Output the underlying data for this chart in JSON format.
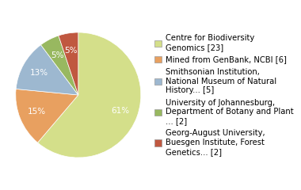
{
  "sizes": [
    60,
    15,
    13,
    5,
    5
  ],
  "colors": [
    "#d4df8a",
    "#e8a060",
    "#9db8d0",
    "#98b860",
    "#c05840"
  ],
  "labels": [
    "Centre for Biodiversity\nGenomics [23]",
    "Mined from GenBank, NCBI [6]",
    "Smithsonian Institution,\nNational Museum of Natural\nHistory... [5]",
    "University of Johannesburg,\nDepartment of Botany and Plant\n... [2]",
    "Georg-August University,\nBuesgen Institute, Forest\nGenetics... [2]"
  ],
  "startangle": 90,
  "background_color": "#ffffff",
  "legend_fontsize": 7.2,
  "autopct_fontsize": 7.5,
  "pct_color": "white"
}
